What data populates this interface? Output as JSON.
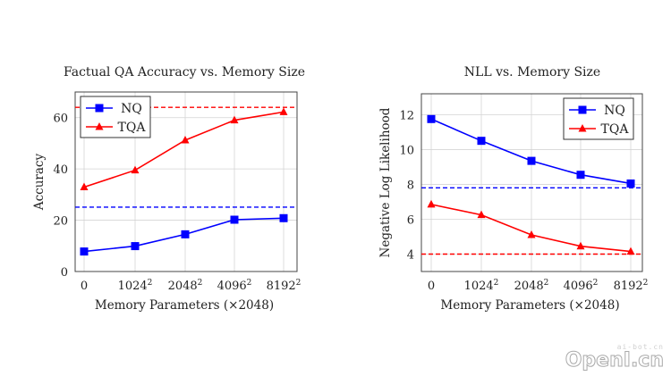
{
  "chart_data": [
    {
      "type": "line",
      "title": "Factual QA Accuracy vs. Memory Size",
      "xlabel": "Memory Parameters (×2048)",
      "ylabel": "Accuracy",
      "categories": [
        "0",
        "1024²",
        "2048²",
        "4096²",
        "8192²"
      ],
      "yticks": [
        0,
        20,
        40,
        60
      ],
      "ylim": [
        0,
        70
      ],
      "grid": true,
      "legend": "top-left",
      "series": [
        {
          "name": "NQ",
          "color": "#0000ff",
          "marker": "square",
          "values": [
            7.8,
            9.9,
            14.5,
            20.2,
            20.8
          ]
        },
        {
          "name": "TQA",
          "color": "#ff0000",
          "marker": "triangle",
          "values": [
            32.9,
            39.5,
            51.2,
            59.0,
            62.2
          ]
        }
      ],
      "reference_lines": [
        {
          "color": "#0000ff",
          "style": "dashed",
          "value": 25.1
        },
        {
          "color": "#ff0000",
          "style": "dashed",
          "value": 64.0
        }
      ]
    },
    {
      "type": "line",
      "title": "NLL vs. Memory Size",
      "xlabel": "Memory Parameters (×2048)",
      "ylabel": "Negative Log Likelihood",
      "categories": [
        "0",
        "1024²",
        "2048²",
        "4096²",
        "8192²"
      ],
      "yticks": [
        4,
        6,
        8,
        10,
        12
      ],
      "ylim": [
        3,
        13.2
      ],
      "grid": true,
      "legend": "top-right",
      "series": [
        {
          "name": "NQ",
          "color": "#0000ff",
          "marker": "square",
          "values": [
            11.75,
            10.5,
            9.35,
            8.55,
            8.05
          ]
        },
        {
          "name": "TQA",
          "color": "#ff0000",
          "marker": "triangle",
          "values": [
            6.85,
            6.25,
            5.1,
            4.45,
            4.15
          ]
        }
      ],
      "reference_lines": [
        {
          "color": "#0000ff",
          "style": "dashed",
          "value": 7.8
        },
        {
          "color": "#ff0000",
          "style": "dashed",
          "value": 4.0
        }
      ]
    }
  ],
  "watermark": {
    "small": "ai-bot.cn",
    "big": "OpenI.cn"
  }
}
